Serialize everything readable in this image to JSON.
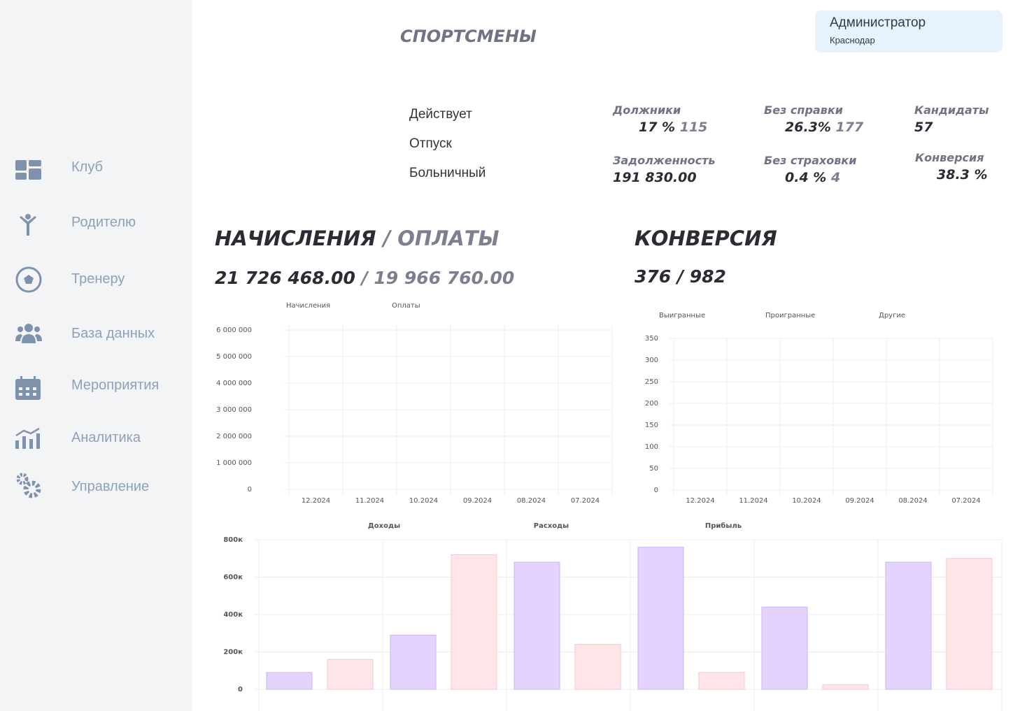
{
  "sidebar": {
    "items": [
      "Клуб",
      "Родителю",
      "Тренеру",
      "База данных",
      "Мероприятия",
      "Аналитика",
      "Управление"
    ]
  },
  "header": {
    "title": "СПОРТСМЕНЫ",
    "user": {
      "role": "Администратор",
      "city": "Краснодар"
    }
  },
  "statuses": [
    "Действует",
    "Отпуск",
    "Больничный"
  ],
  "stats": [
    {
      "label": "Должники",
      "value": "17 %",
      "extra": "115"
    },
    {
      "label": "Без справки",
      "value": "26.3%",
      "extra": "177"
    },
    {
      "label": "Кандидаты",
      "value": "57"
    },
    {
      "label": "Задолженность",
      "value": "191 830.00"
    },
    {
      "label": "Без страховки",
      "value": "0.4 %",
      "extra": "4"
    },
    {
      "label": "Конверсия",
      "value": "38.3 %"
    }
  ],
  "accruals": {
    "title": "НАЧИСЛЕНИЯ",
    "title_secondary": "/ ОПЛАТЫ",
    "total": "21 726 468.00",
    "total_secondary": "/ 19 966 760.00"
  },
  "conversion": {
    "title": "КОНВЕРСИЯ",
    "total": "376 / 982"
  },
  "chart_data": [
    {
      "type": "line",
      "categories": [
        "12.2024",
        "11.2024",
        "10.2024",
        "09.2024",
        "08.2024",
        "07.2024"
      ],
      "series": [
        {
          "name": "Начисления",
          "values": [
            null,
            null,
            null,
            null,
            null,
            null
          ]
        },
        {
          "name": "Оплаты",
          "values": [
            null,
            null,
            null,
            null,
            null,
            null
          ]
        }
      ],
      "ylim": [
        0,
        6000000
      ],
      "yticks": [
        0,
        {
          "value": 1000000,
          "label": "1 000 000"
        },
        {
          "value": 2000000,
          "label": "2 000 000"
        },
        {
          "value": 3000000,
          "label": "3 000 000"
        },
        {
          "value": 4000000,
          "label": "4 000 000"
        },
        {
          "value": 5000000,
          "label": "5 000 000"
        },
        {
          "value": 6000000,
          "label": "6 000 000"
        }
      ],
      "grid": true
    },
    {
      "type": "line",
      "categories": [
        "12.2024",
        "11.2024",
        "10.2024",
        "09.2024",
        "08.2024",
        "07.2024"
      ],
      "series": [
        {
          "name": "Выигранные",
          "values": [
            null,
            null,
            null,
            null,
            null,
            null
          ]
        },
        {
          "name": "Проигранные",
          "values": [
            null,
            null,
            null,
            null,
            null,
            null
          ]
        },
        {
          "name": "Другие",
          "values": [
            null,
            null,
            null,
            null,
            null,
            null
          ]
        }
      ],
      "ylim": [
        0,
        350
      ],
      "yticks": [
        0,
        50,
        100,
        150,
        200,
        250,
        300,
        350
      ],
      "grid": true
    },
    {
      "type": "bar",
      "categories": [
        null,
        null,
        null,
        null,
        null,
        null
      ],
      "series": [
        {
          "name": "Доходы",
          "color": "#e4d4fd",
          "values": [
            90000,
            290000,
            680000,
            760000,
            440000,
            680000
          ]
        },
        {
          "name": "Расходы",
          "color": "#ffe5e7",
          "values": [
            160000,
            720000,
            240000,
            90000,
            25000,
            700000
          ]
        },
        {
          "name": "Прибыль",
          "values": [
            null,
            null,
            null,
            null,
            null,
            null
          ]
        }
      ],
      "ylim": [
        0,
        800000
      ],
      "yticks": [
        0,
        {
          "value": 200000,
          "label": "200к"
        },
        {
          "value": 400000,
          "label": "400к"
        },
        {
          "value": 600000,
          "label": "600к"
        },
        {
          "value": 800000,
          "label": "800к"
        }
      ],
      "grid": true
    }
  ]
}
